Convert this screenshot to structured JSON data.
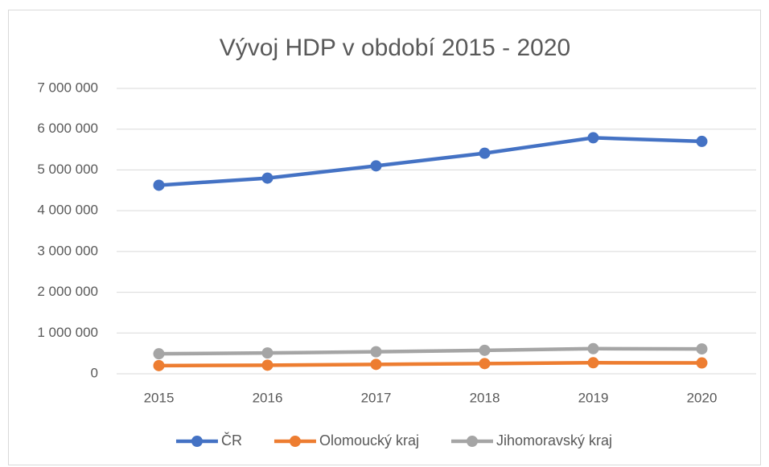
{
  "chart_data": {
    "type": "line",
    "title": "Vývoj HDP v období 2015 - 2020",
    "categories": [
      "2015",
      "2016",
      "2017",
      "2018",
      "2019",
      "2020"
    ],
    "series": [
      {
        "name": "ČR",
        "color": "#4472c4",
        "values": [
          4625000,
          4800000,
          5100000,
          5410000,
          5790000,
          5700000
        ]
      },
      {
        "name": "Olomoucký kraj",
        "color": "#ed7d31",
        "values": [
          200000,
          210000,
          230000,
          250000,
          270000,
          265000
        ]
      },
      {
        "name": "Jihomoravský kraj",
        "color": "#a5a5a5",
        "values": [
          490000,
          510000,
          540000,
          575000,
          615000,
          610000
        ]
      }
    ],
    "ylim": [
      0,
      7000000
    ],
    "yticks": [
      0,
      {
        "value": 1000000,
        "label": "1 000 000"
      },
      {
        "value": 2000000,
        "label": "2 000 000"
      },
      {
        "value": 3000000,
        "label": "3 000 000"
      },
      {
        "value": 4000000,
        "label": "4 000 000"
      },
      {
        "value": 5000000,
        "label": "5 000 000"
      },
      {
        "value": 6000000,
        "label": "6 000 000"
      },
      {
        "value": 7000000,
        "label": "7 000 000"
      }
    ],
    "grid": true,
    "legend": "bottom"
  }
}
